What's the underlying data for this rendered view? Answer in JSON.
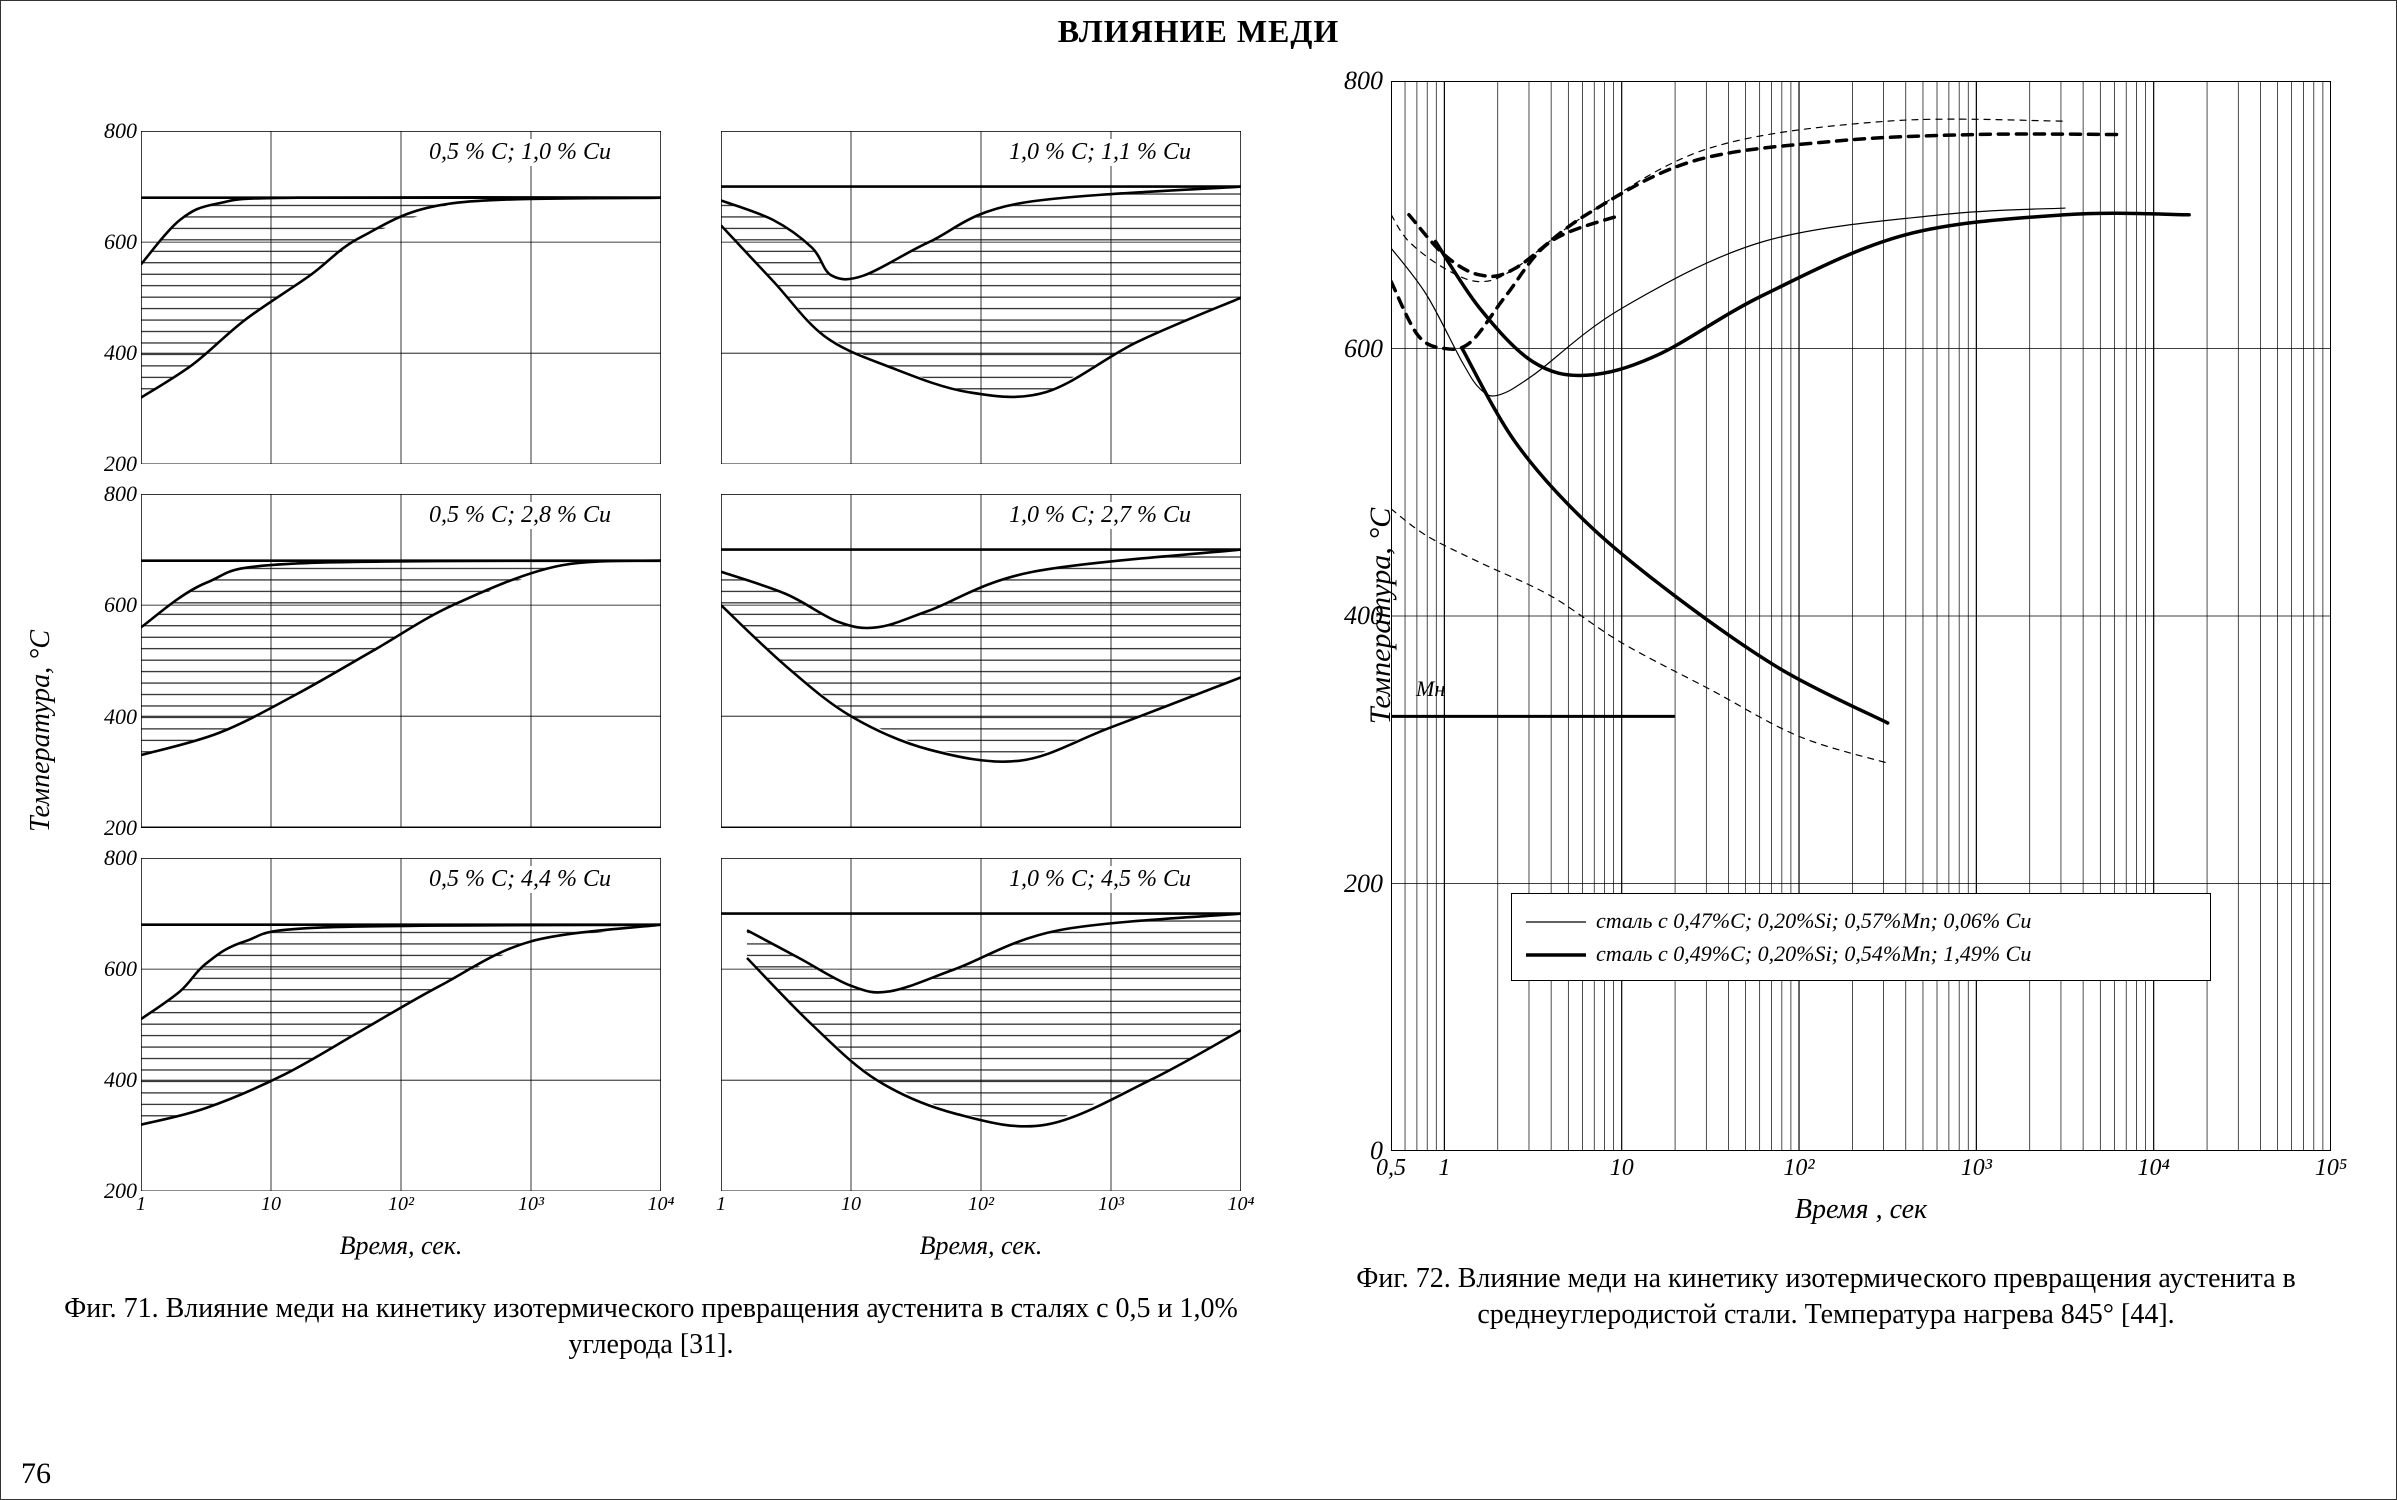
{
  "page_title": "ВЛИЯНИЕ МЕДИ",
  "page_number": "76",
  "colors": {
    "stroke": "#000000",
    "grid": "#000000",
    "hatch": "#000000",
    "background": "#ffffff"
  },
  "fig71": {
    "y_axis_label": "Температура, °С",
    "x_axis_label_left": "Время, сек.",
    "x_axis_label_right": "Время, сек.",
    "caption": "Фиг. 71. Влияние меди на кинетику изотермического превращения аустенита в сталях с 0,5  и 1,0% углерода [31].",
    "x_scale": "log",
    "x_ticks": [
      "1",
      "10",
      "10²",
      "10³",
      "10⁴"
    ],
    "x_vals": [
      0,
      1,
      2,
      3,
      4
    ],
    "y_ticks": [
      "200",
      "400",
      "600",
      "800"
    ],
    "y_vals": [
      200,
      400,
      600,
      800
    ],
    "ylim": [
      200,
      800
    ],
    "xlim_log": [
      0,
      4
    ],
    "line_width_main": 2.5,
    "grid_width": 0.8,
    "hatch_spacing": 11,
    "panels": [
      {
        "label": "0,5 % С; 1,0 % Си",
        "top_line": 680,
        "curve1": [
          [
            0,
            560
          ],
          [
            0.3,
            640
          ],
          [
            0.6,
            670
          ],
          [
            1.2,
            680
          ],
          [
            4,
            680
          ]
        ],
        "curve2": [
          [
            0,
            320
          ],
          [
            0.4,
            380
          ],
          [
            0.8,
            460
          ],
          [
            1.3,
            540
          ],
          [
            1.7,
            610
          ],
          [
            2.4,
            670
          ],
          [
            4,
            680
          ]
        ]
      },
      {
        "label": "1,0 % С; 1,1 % Си",
        "top_line": 700,
        "curve1": [
          [
            0,
            675
          ],
          [
            0.4,
            640
          ],
          [
            0.7,
            590
          ],
          [
            0.85,
            540
          ],
          [
            1.1,
            540
          ],
          [
            1.6,
            600
          ],
          [
            2.3,
            670
          ],
          [
            4,
            700
          ]
        ],
        "curve2": [
          [
            0,
            630
          ],
          [
            0.4,
            530
          ],
          [
            0.8,
            430
          ],
          [
            1.3,
            375
          ],
          [
            1.9,
            330
          ],
          [
            2.5,
            330
          ],
          [
            3.2,
            420
          ],
          [
            4,
            500
          ]
        ]
      },
      {
        "label": "0,5 % С; 2,8 % Си",
        "top_line": 680,
        "curve1": [
          [
            0,
            560
          ],
          [
            0.5,
            640
          ],
          [
            1.2,
            675
          ],
          [
            4,
            680
          ]
        ],
        "curve2": [
          [
            0,
            330
          ],
          [
            0.6,
            370
          ],
          [
            1.2,
            440
          ],
          [
            1.8,
            520
          ],
          [
            2.4,
            600
          ],
          [
            3.2,
            670
          ],
          [
            4,
            680
          ]
        ]
      },
      {
        "label": "1,0 % С; 2,7 % Си",
        "top_line": 700,
        "curve1": [
          [
            0,
            660
          ],
          [
            0.5,
            620
          ],
          [
            0.9,
            570
          ],
          [
            1.2,
            560
          ],
          [
            1.6,
            590
          ],
          [
            2.4,
            660
          ],
          [
            4,
            700
          ]
        ],
        "curve2": [
          [
            0,
            600
          ],
          [
            0.5,
            490
          ],
          [
            1.0,
            400
          ],
          [
            1.6,
            340
          ],
          [
            2.3,
            320
          ],
          [
            3.0,
            380
          ],
          [
            4,
            470
          ]
        ]
      },
      {
        "label": "0,5 % С; 4,4 % Си",
        "top_line": 680,
        "curve1": [
          [
            0,
            510
          ],
          [
            0.3,
            560
          ],
          [
            0.5,
            610
          ],
          [
            0.8,
            650
          ],
          [
            1.4,
            675
          ],
          [
            4,
            680
          ]
        ],
        "curve2": [
          [
            0,
            320
          ],
          [
            0.5,
            350
          ],
          [
            1.1,
            410
          ],
          [
            1.7,
            490
          ],
          [
            2.3,
            570
          ],
          [
            3.0,
            650
          ],
          [
            4,
            680
          ]
        ]
      },
      {
        "label": "1,0 % С; 4,5 % Си",
        "top_line": 700,
        "curve1": [
          [
            0.2,
            670
          ],
          [
            0.6,
            620
          ],
          [
            1.0,
            570
          ],
          [
            1.3,
            560
          ],
          [
            1.8,
            600
          ],
          [
            2.6,
            670
          ],
          [
            4,
            700
          ]
        ],
        "curve2": [
          [
            0.2,
            620
          ],
          [
            0.7,
            500
          ],
          [
            1.2,
            400
          ],
          [
            1.8,
            340
          ],
          [
            2.5,
            320
          ],
          [
            3.3,
            400
          ],
          [
            4,
            490
          ]
        ]
      }
    ]
  },
  "fig72": {
    "y_axis_label": "Температура, °С",
    "x_axis_label": "Время , сек",
    "caption": "Фиг. 72. Влияние меди на кинетику изотермического превращения аустенита в среднеуглеродистой стали. Температура нагрева 845° [44].",
    "x_scale": "log",
    "x_ticks": [
      "0,5",
      "1",
      "10",
      "10²",
      "10³",
      "10⁴",
      "10⁵"
    ],
    "x_vals": [
      -0.301,
      0,
      1,
      2,
      3,
      4,
      5
    ],
    "y_ticks": [
      "0",
      "200",
      "400",
      "600",
      "800"
    ],
    "y_vals": [
      0,
      200,
      400,
      600,
      800
    ],
    "ylim": [
      0,
      800
    ],
    "xlim_log": [
      -0.301,
      5
    ],
    "mh_label": "Мн",
    "mh_line_y": 325,
    "mh_line_x_end": 1.3,
    "thin_line_width": 1.2,
    "thick_line_width": 3.5,
    "grid_width": 0.7,
    "legend": [
      {
        "style": "thin",
        "text": "сталь с 0,47%С; 0,20%Si; 0,57%Мn; 0,06% Си"
      },
      {
        "style": "thick",
        "text": "сталь с 0,49%С; 0,20%Si; 0,54%Мn; 1,49% Си"
      }
    ],
    "curves": [
      {
        "style": "thin",
        "dash": "6,6",
        "points": [
          [
            -0.3,
            700
          ],
          [
            -0.2,
            680
          ],
          [
            0,
            660
          ],
          [
            0.2,
            650
          ],
          [
            0.4,
            660
          ],
          [
            0.8,
            700
          ],
          [
            1.5,
            750
          ],
          [
            2.5,
            770
          ],
          [
            3.5,
            770
          ]
        ]
      },
      {
        "style": "thin",
        "dash": "none",
        "points": [
          [
            -0.3,
            675
          ],
          [
            -0.1,
            640
          ],
          [
            0.1,
            590
          ],
          [
            0.2,
            570
          ],
          [
            0.3,
            565
          ],
          [
            0.5,
            580
          ],
          [
            1.0,
            630
          ],
          [
            1.8,
            680
          ],
          [
            2.8,
            700
          ],
          [
            3.5,
            705
          ]
        ]
      },
      {
        "style": "thin",
        "dash": "6,6",
        "points": [
          [
            -0.3,
            480
          ],
          [
            -0.1,
            460
          ],
          [
            0.2,
            440
          ],
          [
            0.6,
            415
          ],
          [
            1.0,
            380
          ],
          [
            1.5,
            345
          ],
          [
            2.0,
            310
          ],
          [
            2.5,
            290
          ]
        ]
      },
      {
        "style": "thick",
        "dash": "10,8",
        "points": [
          [
            -0.2,
            700
          ],
          [
            0,
            670
          ],
          [
            0.2,
            655
          ],
          [
            0.4,
            660
          ],
          [
            0.8,
            700
          ],
          [
            1.4,
            740
          ],
          [
            2.2,
            755
          ],
          [
            3.0,
            760
          ],
          [
            3.8,
            760
          ]
        ]
      },
      {
        "style": "thick",
        "dash": "none",
        "points": [
          [
            -0.05,
            680
          ],
          [
            0.2,
            630
          ],
          [
            0.5,
            590
          ],
          [
            0.8,
            580
          ],
          [
            1.2,
            595
          ],
          [
            1.8,
            640
          ],
          [
            2.6,
            685
          ],
          [
            3.5,
            700
          ],
          [
            4.2,
            700
          ]
        ]
      },
      {
        "style": "thick",
        "dash": "none",
        "points": [
          [
            0.1,
            600
          ],
          [
            0.4,
            530
          ],
          [
            0.8,
            470
          ],
          [
            1.3,
            415
          ],
          [
            1.9,
            360
          ],
          [
            2.5,
            320
          ]
        ]
      },
      {
        "style": "thick",
        "dash": "10,8",
        "points": [
          [
            -0.3,
            650
          ],
          [
            -0.15,
            610
          ],
          [
            0,
            600
          ],
          [
            0.15,
            605
          ],
          [
            0.35,
            640
          ],
          [
            0.6,
            680
          ],
          [
            1.0,
            700
          ]
        ]
      }
    ]
  }
}
